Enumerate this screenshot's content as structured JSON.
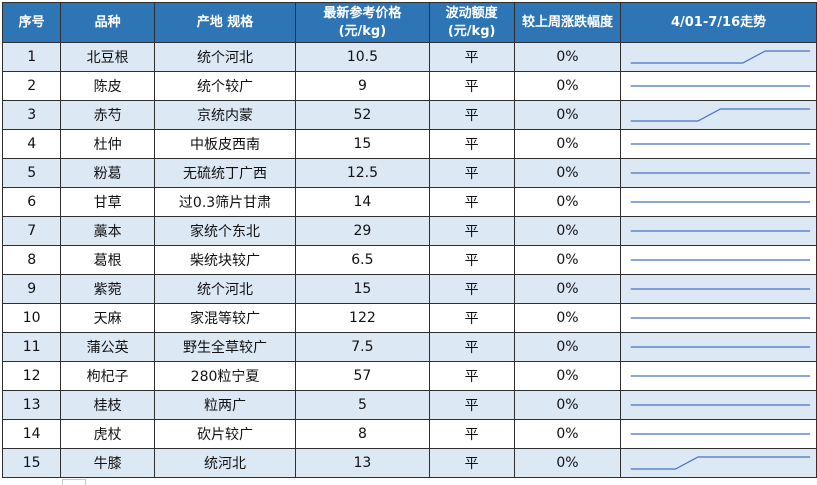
{
  "headers": {
    "index": "序号",
    "variety": "品种",
    "origin_spec": "产地 规格",
    "price_l1": "最新参考价格",
    "price_l2": "(元/kg)",
    "fluct_l1": "波动额度",
    "fluct_l2": "(元/kg)",
    "weekly_change": "较上周涨跌幅度",
    "trend": "4/01-7/16走势"
  },
  "colors": {
    "header_bg": "#2e75b6",
    "band_odd": "#dde8f5",
    "band_even": "#ffffff",
    "sparkline": "#4472c4"
  },
  "rows": [
    {
      "index": "1",
      "variety": "北豆根",
      "origin_spec": "统个河北",
      "price": "10.5",
      "fluct": "平",
      "change": "0%",
      "trend_levels": [
        0.2,
        0.2,
        0.2,
        0.2,
        0.2,
        0.2,
        0.8,
        0.8,
        0.8
      ]
    },
    {
      "index": "2",
      "variety": "陈皮",
      "origin_spec": "统个较广",
      "price": "9",
      "fluct": "平",
      "change": "0%",
      "trend_levels": [
        0.5,
        0.5,
        0.5,
        0.5,
        0.5,
        0.5,
        0.5,
        0.5,
        0.5
      ]
    },
    {
      "index": "3",
      "variety": "赤芍",
      "origin_spec": "京统内蒙",
      "price": "52",
      "fluct": "平",
      "change": "0%",
      "trend_levels": [
        0.2,
        0.2,
        0.2,
        0.2,
        0.8,
        0.8,
        0.8,
        0.8,
        0.8
      ]
    },
    {
      "index": "4",
      "variety": "杜仲",
      "origin_spec": "中板皮西南",
      "price": "15",
      "fluct": "平",
      "change": "0%",
      "trend_levels": [
        0.5,
        0.5,
        0.5,
        0.5,
        0.5,
        0.5,
        0.5,
        0.5,
        0.5
      ]
    },
    {
      "index": "5",
      "variety": "粉葛",
      "origin_spec": "无硫统丁广西",
      "price": "12.5",
      "fluct": "平",
      "change": "0%",
      "trend_levels": [
        0.5,
        0.5,
        0.5,
        0.5,
        0.5,
        0.5,
        0.5,
        0.5,
        0.5
      ]
    },
    {
      "index": "6",
      "variety": "甘草",
      "origin_spec": "过0.3筛片甘肃",
      "price": "14",
      "fluct": "平",
      "change": "0%",
      "trend_levels": [
        0.5,
        0.5,
        0.5,
        0.5,
        0.5,
        0.5,
        0.5,
        0.5,
        0.5
      ]
    },
    {
      "index": "7",
      "variety": "藁本",
      "origin_spec": "家统个东北",
      "price": "29",
      "fluct": "平",
      "change": "0%",
      "trend_levels": [
        0.5,
        0.5,
        0.5,
        0.5,
        0.5,
        0.5,
        0.5,
        0.5,
        0.5
      ]
    },
    {
      "index": "8",
      "variety": "葛根",
      "origin_spec": "柴统块较广",
      "price": "6.5",
      "fluct": "平",
      "change": "0%",
      "trend_levels": [
        0.5,
        0.5,
        0.5,
        0.5,
        0.5,
        0.5,
        0.5,
        0.5,
        0.5
      ]
    },
    {
      "index": "9",
      "variety": "紫菀",
      "origin_spec": "统个河北",
      "price": "15",
      "fluct": "平",
      "change": "0%",
      "trend_levels": [
        0.5,
        0.5,
        0.5,
        0.5,
        0.5,
        0.5,
        0.5,
        0.5,
        0.5
      ]
    },
    {
      "index": "10",
      "variety": "天麻",
      "origin_spec": "家混等较广",
      "price": "122",
      "fluct": "平",
      "change": "0%",
      "trend_levels": [
        0.5,
        0.5,
        0.5,
        0.5,
        0.5,
        0.5,
        0.5,
        0.5,
        0.5
      ]
    },
    {
      "index": "11",
      "variety": "蒲公英",
      "origin_spec": "野生全草较广",
      "price": "7.5",
      "fluct": "平",
      "change": "0%",
      "trend_levels": [
        0.5,
        0.5,
        0.5,
        0.5,
        0.5,
        0.5,
        0.5,
        0.5,
        0.5
      ]
    },
    {
      "index": "12",
      "variety": "枸杞子",
      "origin_spec": "280粒宁夏",
      "price": "57",
      "fluct": "平",
      "change": "0%",
      "trend_levels": [
        0.5,
        0.5,
        0.5,
        0.5,
        0.5,
        0.5,
        0.5,
        0.5,
        0.5
      ]
    },
    {
      "index": "13",
      "variety": "桂枝",
      "origin_spec": "粒两广",
      "price": "5",
      "fluct": "平",
      "change": "0%",
      "trend_levels": [
        0.5,
        0.5,
        0.5,
        0.5,
        0.5,
        0.5,
        0.5,
        0.5,
        0.5
      ]
    },
    {
      "index": "14",
      "variety": "虎杖",
      "origin_spec": "砍片较广",
      "price": "8",
      "fluct": "平",
      "change": "0%",
      "trend_levels": [
        0.5,
        0.5,
        0.5,
        0.5,
        0.5,
        0.5,
        0.5,
        0.5,
        0.5
      ]
    },
    {
      "index": "15",
      "variety": "牛膝",
      "origin_spec": "统河北",
      "price": "13",
      "fluct": "平",
      "change": "0%",
      "trend_levels": [
        0.2,
        0.2,
        0.2,
        0.8,
        0.8,
        0.8,
        0.8,
        0.8,
        0.8
      ]
    }
  ]
}
